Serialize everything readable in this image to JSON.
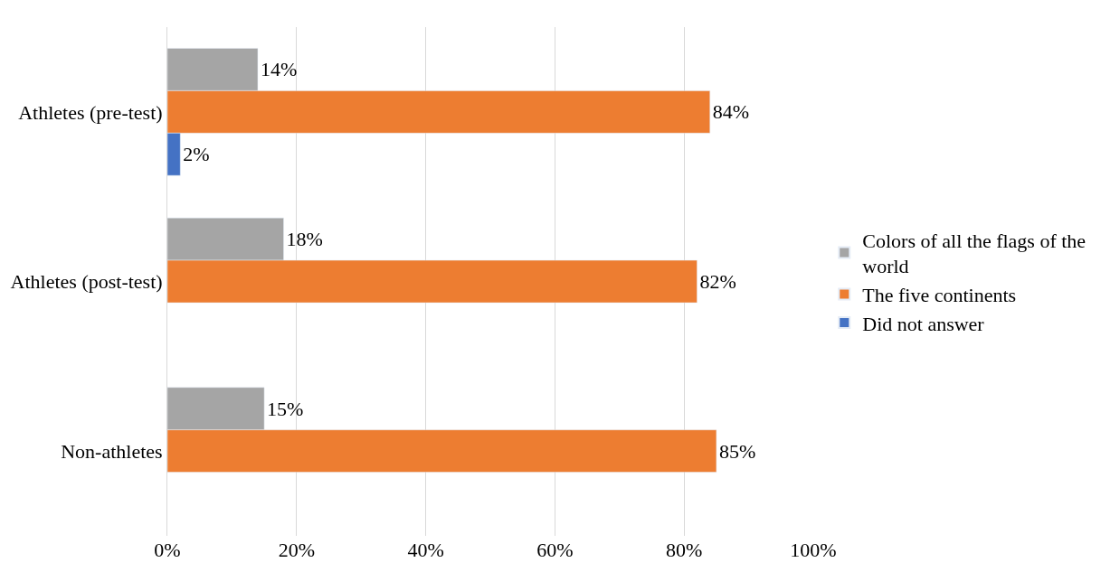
{
  "chart_data": {
    "type": "bar",
    "orientation": "horizontal",
    "categories": [
      "Athletes (pre-test)",
      "Athletes (post-test)",
      "Non-athletes"
    ],
    "series": [
      {
        "name": "Colors of all the flags of the world",
        "color": "#a5a5a5",
        "values": [
          14,
          18,
          15
        ],
        "value_labels": [
          "14%",
          "18%",
          "15%"
        ]
      },
      {
        "name": "The five continents",
        "color": "#ed7d31",
        "values": [
          84,
          82,
          85
        ],
        "value_labels": [
          "84%",
          "82%",
          "85%"
        ]
      },
      {
        "name": "Did not answer",
        "color": "#4472c4",
        "values": [
          2,
          null,
          null
        ],
        "value_labels": [
          "2%",
          null,
          null
        ]
      }
    ],
    "xlim": [
      0,
      100
    ],
    "xticks": [
      {
        "value": 0,
        "label": "0%"
      },
      {
        "value": 20,
        "label": "20%"
      },
      {
        "value": 40,
        "label": "40%"
      },
      {
        "value": 60,
        "label": "60%"
      },
      {
        "value": 80,
        "label": "80%"
      },
      {
        "value": 100,
        "label": "100%"
      }
    ],
    "grid": "x",
    "legend": "right"
  }
}
